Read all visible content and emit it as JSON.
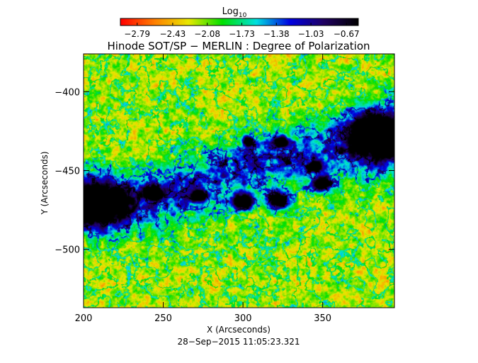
{
  "chart_data": {
    "type": "heatmap",
    "title": "Hinode SOT/SP − MERLIN : Degree of Polarization",
    "xlabel": "X (Arcseconds)",
    "ylabel": "Y (Arcseconds)",
    "timestamp": "28−Sep−2015 11:05:23.321",
    "xlim": [
      200,
      395
    ],
    "ylim": [
      -537,
      -376
    ],
    "x_ticks": [
      {
        "value": 200,
        "label": "200"
      },
      {
        "value": 250,
        "label": "250"
      },
      {
        "value": 300,
        "label": "300"
      },
      {
        "value": 350,
        "label": "350"
      }
    ],
    "y_ticks": [
      {
        "value": -400,
        "label": "−400"
      },
      {
        "value": -450,
        "label": "−450"
      },
      {
        "value": -500,
        "label": "−500"
      }
    ],
    "colorbar": {
      "title_main": "Log",
      "title_sub": "10",
      "range": [
        -2.96,
        -0.55
      ],
      "tick_values": [
        -2.79,
        -2.43,
        -2.08,
        -1.73,
        -1.38,
        -1.03,
        -0.67
      ],
      "tick_labels": [
        "−2.79",
        "−2.43",
        "−2.08",
        "−1.73",
        "−1.38",
        "−1.03",
        "−0.67"
      ],
      "colormap": [
        "#ff0000",
        "#ff8000",
        "#e8e800",
        "#00e000",
        "#00e0e0",
        "#0000e0",
        "#200060",
        "#000000"
      ]
    },
    "features": [
      {
        "name": "sunspot-west",
        "x": 208,
        "y": -471,
        "rx": 18,
        "ry": 13
      },
      {
        "name": "sunspot-east",
        "x": 384,
        "y": -425,
        "rx": 17,
        "ry": 14
      },
      {
        "name": "pore-1",
        "x": 244,
        "y": -464,
        "rx": 5,
        "ry": 4
      },
      {
        "name": "pore-2",
        "x": 272,
        "y": -466,
        "rx": 4,
        "ry": 3
      },
      {
        "name": "pore-3",
        "x": 300,
        "y": -470,
        "rx": 6,
        "ry": 5
      },
      {
        "name": "pore-4",
        "x": 322,
        "y": -469,
        "rx": 7,
        "ry": 5
      },
      {
        "name": "pore-5",
        "x": 350,
        "y": -458,
        "rx": 6,
        "ry": 4
      },
      {
        "name": "pore-6",
        "x": 303,
        "y": -431,
        "rx": 3,
        "ry": 3
      },
      {
        "name": "pore-7",
        "x": 324,
        "y": -432,
        "rx": 4,
        "ry": 3
      },
      {
        "name": "pore-8",
        "x": 345,
        "y": -447,
        "rx": 4,
        "ry": 3
      }
    ]
  }
}
